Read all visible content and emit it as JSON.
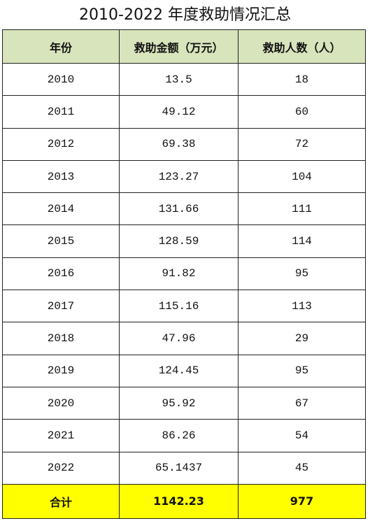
{
  "title": "2010-2022 年度救助情况汇总",
  "table": {
    "header": [
      "年份",
      "救助金额（万元）",
      "救助人数（人）"
    ],
    "rows": [
      [
        "2010",
        "13.5",
        "18"
      ],
      [
        "2011",
        "49.12",
        "60"
      ],
      [
        "2012",
        "69.38",
        "72"
      ],
      [
        "2013",
        "123.27",
        "104"
      ],
      [
        "2014",
        "131.66",
        "111"
      ],
      [
        "2015",
        "128.59",
        "114"
      ],
      [
        "2016",
        "91.82",
        "95"
      ],
      [
        "2017",
        "115.16",
        "113"
      ],
      [
        "2018",
        "47.96",
        "29"
      ],
      [
        "2019",
        "124.45",
        "95"
      ],
      [
        "2020",
        "95.92",
        "67"
      ],
      [
        "2021",
        "86.26",
        "54"
      ],
      [
        "2022",
        "65.1437",
        "45"
      ]
    ],
    "total": [
      "合计",
      "1142.23",
      "977"
    ]
  }
}
